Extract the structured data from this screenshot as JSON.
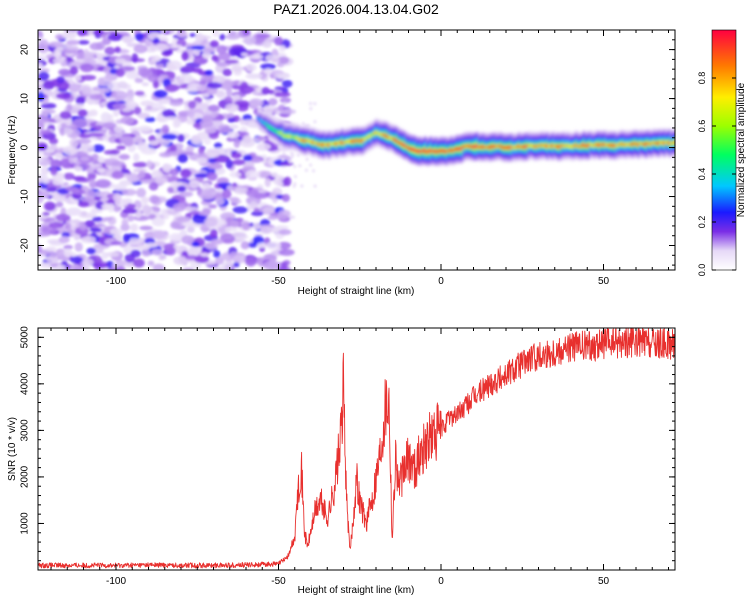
{
  "title": "PAZ1.2026.004.13.04.G02",
  "chart_data": [
    {
      "type": "heatmap",
      "name": "spectrogram",
      "xlabel": "Height of straight line (km)",
      "ylabel": "Frequency (Hz)",
      "xlim": [
        -124,
        72
      ],
      "ylim": [
        -25,
        24
      ],
      "xticks": [
        -100,
        -50,
        0,
        50
      ],
      "yticks": [
        -20,
        -10,
        0,
        10,
        20
      ],
      "colorbar": {
        "label": "Normalized spectral amplitude",
        "range": [
          0,
          1
        ],
        "ticks": [
          0.0,
          0.2,
          0.4,
          0.6,
          0.8
        ]
      },
      "noise_region_km": [
        -124,
        -50
      ],
      "ridge_km": [
        -56,
        -52,
        -48,
        -44,
        -40,
        -36,
        -32,
        -28,
        -24,
        -20,
        -16,
        -12,
        -8,
        -4,
        0,
        4,
        8,
        12,
        16,
        20,
        24,
        28,
        32,
        36,
        40,
        44,
        48,
        52,
        56,
        60,
        64,
        68,
        72
      ],
      "ridge_hz": [
        6,
        4,
        2.5,
        1.8,
        1.2,
        0.4,
        0.8,
        1.2,
        1.5,
        3,
        2.2,
        0.8,
        -0.6,
        -0.8,
        -0.7,
        -0.6,
        0.2,
        0.2,
        0.2,
        0.1,
        0.2,
        0.3,
        0.4,
        0.3,
        0.3,
        0.4,
        0.5,
        0.5,
        0.6,
        0.7,
        0.8,
        0.9,
        1.0
      ],
      "ridge_amp": [
        0.25,
        0.45,
        0.6,
        0.7,
        0.75,
        0.8,
        0.78,
        0.8,
        0.75,
        0.7,
        0.8,
        0.85,
        0.95,
        0.95,
        0.92,
        0.85,
        0.9,
        0.88,
        0.86,
        0.85,
        0.85,
        0.8,
        0.8,
        0.78,
        0.8,
        0.8,
        0.82,
        0.8,
        0.8,
        0.85,
        0.85,
        0.8,
        0.8
      ]
    },
    {
      "type": "line",
      "name": "snr",
      "xlabel": "Height of straight line (km)",
      "ylabel": "SNR (10 * v/v)",
      "xlim": [
        -124,
        72
      ],
      "ylim": [
        0,
        5200
      ],
      "xticks": [
        -100,
        -50,
        0,
        50
      ],
      "yticks": [
        1000,
        2000,
        3000,
        4000,
        5000
      ],
      "series": [
        {
          "name": "SNR",
          "color": "#e8302e",
          "x": [
            -124,
            -110,
            -100,
            -90,
            -80,
            -70,
            -60,
            -50,
            -47,
            -45,
            -44,
            -43,
            -42,
            -41,
            -39,
            -37,
            -35,
            -33,
            -31,
            -30,
            -29,
            -28,
            -27,
            -26,
            -25,
            -23,
            -21,
            -19,
            -17,
            -16,
            -15,
            -14,
            -13,
            -12,
            -10,
            -8,
            -5,
            -2,
            0,
            3,
            6,
            10,
            15,
            20,
            25,
            30,
            35,
            40,
            45,
            50,
            55,
            60,
            65,
            72
          ],
          "y": [
            100,
            100,
            100,
            110,
            100,
            100,
            110,
            130,
            300,
            700,
            1700,
            2300,
            800,
            500,
            1200,
            1500,
            1100,
            1700,
            2700,
            3900,
            1400,
            400,
            1100,
            2000,
            1500,
            1000,
            1600,
            2400,
            3600,
            3700,
            600,
            2500,
            1800,
            2000,
            2400,
            2200,
            2700,
            2900,
            3000,
            3300,
            3400,
            3700,
            4000,
            4200,
            4450,
            4600,
            4700,
            4800,
            4800,
            4850,
            4900,
            4900,
            4850,
            4850
          ]
        }
      ]
    }
  ]
}
